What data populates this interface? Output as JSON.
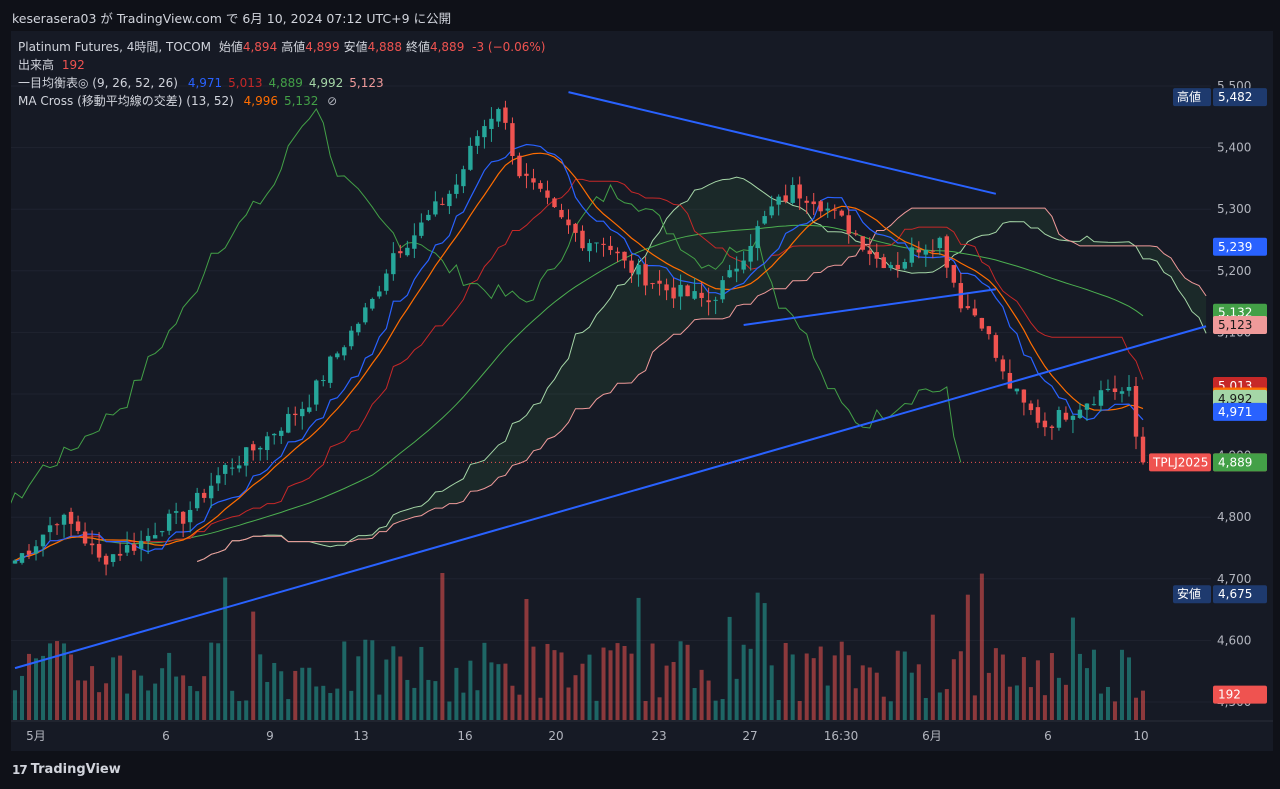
{
  "header": {
    "publish_line": "keserasera03 が TradingView.com で 6月 10, 2024 07:12 UTC+9 に公開"
  },
  "legend": {
    "symbol": "Platinum Futures, 4時間, TOCOM",
    "ohlc": [
      {
        "label": "始値",
        "value": "4,894"
      },
      {
        "label": "高値",
        "value": "4,899"
      },
      {
        "label": "安値",
        "value": "4,888"
      },
      {
        "label": "終値",
        "value": "4,889"
      }
    ],
    "change": "-3 (−0.06%)",
    "volume_label": "出来高",
    "volume_value": "192",
    "ichimoku_label": "一目均衡表◎ (9, 26, 52, 26)",
    "ichimoku_values": [
      {
        "value": "4,971",
        "color": "#2962ff"
      },
      {
        "value": "5,013",
        "color": "#c62828"
      },
      {
        "value": "4,889",
        "color": "#43a047"
      },
      {
        "value": "4,992",
        "color": "#a5d6a7"
      },
      {
        "value": "5,123",
        "color": "#ef9a9a"
      }
    ],
    "ma_label": "MA Cross (移動平均線の交差) (13, 52)",
    "ma_values": [
      {
        "value": "4,996",
        "color": "#ff6d00"
      },
      {
        "value": "5,132",
        "color": "#43a047"
      }
    ],
    "eye_icon": "eye-off-icon"
  },
  "colors": {
    "up": "#26a69a",
    "down": "#ef5350",
    "tenkan": "#2962ff",
    "kijun": "#c62828",
    "chikou": "#43a047",
    "spanA": "#a5d6a7",
    "spanB": "#ef9a9a",
    "ma_fast": "#ff6d00",
    "ma_slow": "#4caf50",
    "trendline": "#2962ff"
  },
  "price_axis": {
    "ticks": [
      "5,500",
      "5,400",
      "5,300",
      "5,200",
      "5,100",
      "5,000",
      "4,900",
      "4,800",
      "4,700",
      "4,600",
      "4,500"
    ],
    "tick_values": [
      5500,
      5400,
      5300,
      5200,
      5100,
      5000,
      4900,
      4800,
      4700,
      4600,
      4500
    ]
  },
  "time_axis": {
    "labels": [
      "5月",
      "6",
      "9",
      "13",
      "16",
      "20",
      "23",
      "27",
      "16:30",
      "6月",
      "6",
      "10"
    ]
  },
  "badges": [
    {
      "id": "high",
      "prefix": "高値",
      "text": "5,482",
      "price": 5482,
      "bg": "#1e3a6e",
      "fg": "#ffffff"
    },
    {
      "id": "tenkan-future",
      "prefix": "",
      "text": "5,239",
      "price": 5239,
      "bg": "#2962ff",
      "fg": "#ffffff"
    },
    {
      "id": "ma-slow",
      "prefix": "",
      "text": "5,132",
      "price": 5132,
      "bg": "#43a047",
      "fg": "#ffffff"
    },
    {
      "id": "spanb",
      "prefix": "",
      "text": "5,123",
      "price": 5112,
      "bg": "#ef9a9a",
      "fg": "#1a1a1a"
    },
    {
      "id": "kijun",
      "prefix": "",
      "text": "5,013",
      "price": 5013,
      "bg": "#c62828",
      "fg": "#ffffff"
    },
    {
      "id": "ma-fast",
      "prefix": "",
      "text": "4,996",
      "price": 4996,
      "bg": "#ff6d00",
      "fg": "#ffffff"
    },
    {
      "id": "spana",
      "prefix": "",
      "text": "4,992",
      "price": 4992,
      "bg": "#a5d6a7",
      "fg": "#1a1a1a"
    },
    {
      "id": "tenkan",
      "prefix": "",
      "text": "4,971",
      "price": 4971,
      "bg": "#2962ff",
      "fg": "#ffffff"
    },
    {
      "id": "last",
      "prefix": "TPLJ2025",
      "text": "4,889",
      "price": 4889,
      "bg": "#ef5350",
      "fg": "#ffffff"
    },
    {
      "id": "chikou",
      "prefix": "",
      "text": "4,889",
      "price": 4889,
      "bg": "#43a047",
      "fg": "#ffffff"
    },
    {
      "id": "low",
      "prefix": "安値",
      "text": "4,675",
      "price": 4675,
      "bg": "#1e3a6e",
      "fg": "#ffffff"
    },
    {
      "id": "volume",
      "prefix": "",
      "text": "192",
      "price": 4512,
      "bg": "#ef5350",
      "fg": "#ffffff"
    }
  ],
  "footer": {
    "brand": "TradingView",
    "logo_icon": "tradingview-logo-icon"
  },
  "chart_data": {
    "type": "line",
    "title": "Platinum Futures, 4時間, TOCOM",
    "xlabel": "",
    "ylabel": "",
    "ylim": [
      4500,
      5530
    ],
    "close_path": {
      "x_labels": [
        "5月",
        "6",
        "9",
        "13",
        "16",
        "20",
        "23",
        "27",
        "16:30",
        "6月",
        "6",
        "10"
      ],
      "points": [
        [
          0,
          4730
        ],
        [
          3,
          4760
        ],
        [
          6,
          4800
        ],
        [
          9,
          4780
        ],
        [
          12,
          4730
        ],
        [
          15,
          4745
        ],
        [
          18,
          4760
        ],
        [
          21,
          4790
        ],
        [
          24,
          4800
        ],
        [
          27,
          4840
        ],
        [
          30,
          4880
        ],
        [
          33,
          4900
        ],
        [
          36,
          4930
        ],
        [
          39,
          4960
        ],
        [
          42,
          4990
        ],
        [
          45,
          5050
        ],
        [
          48,
          5100
        ],
        [
          51,
          5150
        ],
        [
          54,
          5230
        ],
        [
          57,
          5260
        ],
        [
          60,
          5300
        ],
        [
          63,
          5340
        ],
        [
          66,
          5420
        ],
        [
          69,
          5470
        ],
        [
          72,
          5360
        ],
        [
          75,
          5320
        ],
        [
          78,
          5280
        ],
        [
          81,
          5250
        ],
        [
          84,
          5250
        ],
        [
          87,
          5210
        ],
        [
          90,
          5190
        ],
        [
          93,
          5170
        ],
        [
          96,
          5160
        ],
        [
          99,
          5150
        ],
        [
          102,
          5190
        ],
        [
          105,
          5250
        ],
        [
          108,
          5300
        ],
        [
          111,
          5330
        ],
        [
          114,
          5320
        ],
        [
          117,
          5290
        ],
        [
          120,
          5260
        ],
        [
          123,
          5220
        ],
        [
          126,
          5210
        ],
        [
          129,
          5240
        ],
        [
          132,
          5250
        ],
        [
          135,
          5150
        ],
        [
          138,
          5120
        ],
        [
          141,
          5030
        ],
        [
          144,
          4980
        ],
        [
          147,
          4950
        ],
        [
          150,
          4970
        ],
        [
          153,
          4990
        ],
        [
          156,
          5010
        ],
        [
          159,
          5000
        ],
        [
          160,
          4930
        ],
        [
          161,
          4889
        ]
      ]
    },
    "tenkan_end": 4971,
    "kijun_end": 5013,
    "chikou_end": 4889,
    "span_a_end": 4992,
    "span_b_end": 5123,
    "ma_fast_end": 4996,
    "ma_slow_end": 5132,
    "session_high": 5482,
    "session_low": 4675,
    "last_close": 4889,
    "last_volume": 192,
    "trendlines": [
      {
        "name": "",
        "from": [
          79,
          5490
        ],
        "to": [
          140,
          5325
        ]
      },
      {
        "name": "",
        "from": [
          104,
          5112
        ],
        "to": [
          140,
          5170
        ]
      },
      {
        "name": "",
        "from": [
          0,
          4555
        ],
        "to": [
          170,
          5110
        ]
      }
    ]
  }
}
